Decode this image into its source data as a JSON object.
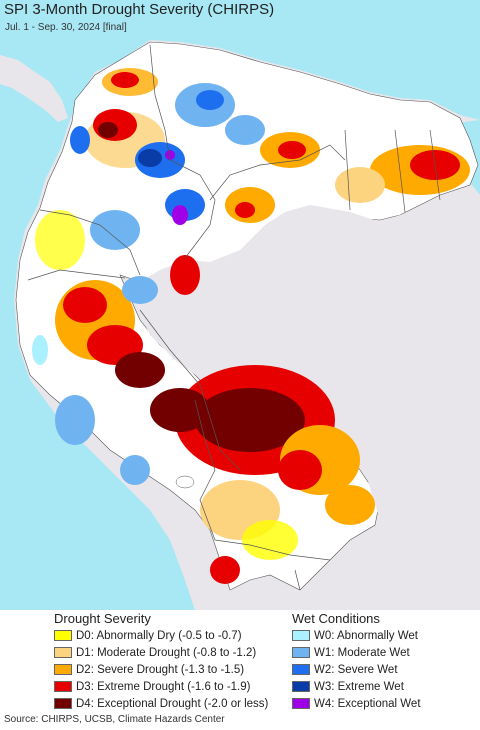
{
  "title": "SPI 3-Month Drought Severity (CHIRPS)",
  "subtitle": "Jul. 1 - Sep. 30, 2024 [final]",
  "colors": {
    "ocean": "#a8e8f5",
    "land": "#ffffff",
    "outside": "#e8e6ea",
    "lake": "#ffffff"
  },
  "legend": {
    "drought_title": "Drought Severity",
    "wet_title": "Wet Conditions",
    "drought_items": [
      {
        "code": "D0",
        "label": "D0: Abnormally Dry (-0.5 to -0.7)",
        "color": "#ffff00"
      },
      {
        "code": "D1",
        "label": "D1: Moderate Drought (-0.8 to -1.2)",
        "color": "#fcd37f"
      },
      {
        "code": "D2",
        "label": "D2: Severe Drought (-1.3 to -1.5)",
        "color": "#ffaa00"
      },
      {
        "code": "D3",
        "label": "D3: Extreme Drought (-1.6 to -1.9)",
        "color": "#e60000"
      },
      {
        "code": "D4",
        "label": "D4: Exceptional Drought (-2.0 or less)",
        "color": "#730000"
      }
    ],
    "wet_items": [
      {
        "code": "W0",
        "label": "W0: Abnormally Wet",
        "color": "#aaf0ff"
      },
      {
        "code": "W1",
        "label": "W1: Moderate Wet",
        "color": "#6fb4f0"
      },
      {
        "code": "W2",
        "label": "W2: Severe Wet",
        "color": "#1e6ef0"
      },
      {
        "code": "W3",
        "label": "W3: Extreme Wet",
        "color": "#0a3ca8"
      },
      {
        "code": "W4",
        "label": "W4: Exceptional Wet",
        "color": "#a000e6"
      }
    ]
  },
  "source": "Source: CHIRPS, UCSB, Climate Hazards Center"
}
